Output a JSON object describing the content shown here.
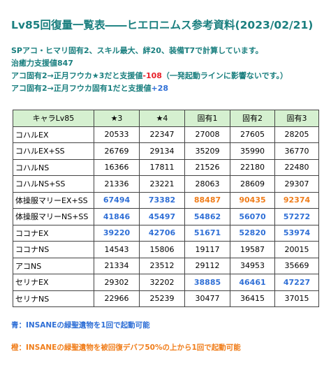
{
  "title": "Lv85回復量一覧表――ヒエロニムス参考資料(2023/02/21)",
  "notes": [
    [
      {
        "text": "SPアコ・ヒマリ固有2、スキル最大、絆20、装備T7で計算しています。",
        "color": "#1a7f7f"
      }
    ],
    [
      {
        "text": "治癒力支援値847",
        "color": "#1a7f7f"
      }
    ],
    [
      {
        "text": "アコ固有2→正月フウカ★3だと支援値",
        "color": "#1a7f7f"
      },
      {
        "text": "-108",
        "color": "#e8202a"
      },
      {
        "text": "（一発起動ラインに影響ないです。）",
        "color": "#1a7f7f"
      }
    ],
    [
      {
        "text": "アコ固有2→正月フウカ固有1だと支援値",
        "color": "#1a7f7f"
      },
      {
        "text": "+28",
        "color": "#2f6fd6"
      }
    ]
  ],
  "table": {
    "header": [
      "キャラLv85",
      "★3",
      "★4",
      "固有1",
      "固有2",
      "固有3"
    ],
    "header_color": "#d5f0d0",
    "rows": [
      {
        "label": "コハルEX",
        "values": [
          20533,
          22347,
          27008,
          27605,
          28205
        ],
        "colors": [
          "#000",
          "#000",
          "#000",
          "#000",
          "#000"
        ]
      },
      {
        "label": "コハルEX+SS",
        "values": [
          26769,
          29134,
          35209,
          35990,
          36770
        ],
        "colors": [
          "#000",
          "#000",
          "#000",
          "#000",
          "#000"
        ]
      },
      {
        "label": "コハルNS",
        "values": [
          16366,
          17811,
          21526,
          22180,
          22480
        ],
        "colors": [
          "#000",
          "#000",
          "#000",
          "#000",
          "#000"
        ]
      },
      {
        "label": "コハルNS+SS",
        "values": [
          21336,
          23221,
          28063,
          28609,
          29307
        ],
        "colors": [
          "#000",
          "#000",
          "#000",
          "#000",
          "#000"
        ]
      },
      {
        "label": "体操服マリーEX+SS",
        "values": [
          67494,
          73382,
          88487,
          90435,
          92374
        ],
        "colors": [
          "#2f6fd6",
          "#2f6fd6",
          "#f07d1a",
          "#f07d1a",
          "#f07d1a"
        ]
      },
      {
        "label": "体操服マリーNS+SS",
        "values": [
          41846,
          45497,
          54862,
          56070,
          57272
        ],
        "colors": [
          "#2f6fd6",
          "#2f6fd6",
          "#2f6fd6",
          "#2f6fd6",
          "#2f6fd6"
        ]
      },
      {
        "label": "ココナEX",
        "values": [
          39220,
          42706,
          51671,
          52820,
          53974
        ],
        "colors": [
          "#2f6fd6",
          "#2f6fd6",
          "#2f6fd6",
          "#2f6fd6",
          "#2f6fd6"
        ]
      },
      {
        "label": "ココナNS",
        "values": [
          14543,
          15806,
          19117,
          19587,
          20015
        ],
        "colors": [
          "#000",
          "#000",
          "#000",
          "#000",
          "#000"
        ]
      },
      {
        "label": "アコNS",
        "values": [
          21334,
          23512,
          29112,
          34953,
          35669
        ],
        "colors": [
          "#000",
          "#000",
          "#000",
          "#000",
          "#000"
        ]
      },
      {
        "label": "セリナEX",
        "values": [
          29302,
          32202,
          38885,
          46461,
          47227
        ],
        "colors": [
          "#000",
          "#000",
          "#2f6fd6",
          "#2f6fd6",
          "#2f6fd6"
        ]
      },
      {
        "label": "セリナNS",
        "values": [
          22966,
          25239,
          30477,
          36415,
          37015
        ],
        "colors": [
          "#000",
          "#000",
          "#000",
          "#000",
          "#000"
        ]
      }
    ]
  },
  "footer": [
    {
      "text": "青：INSANEの緑聖遺物を1回で起動可能",
      "color": "#2f6fd6"
    },
    {
      "text": "橙：INSANEの緑聖遺物を被回復デバフ50%の上から1回で起動可能",
      "color": "#f07d1a"
    }
  ]
}
